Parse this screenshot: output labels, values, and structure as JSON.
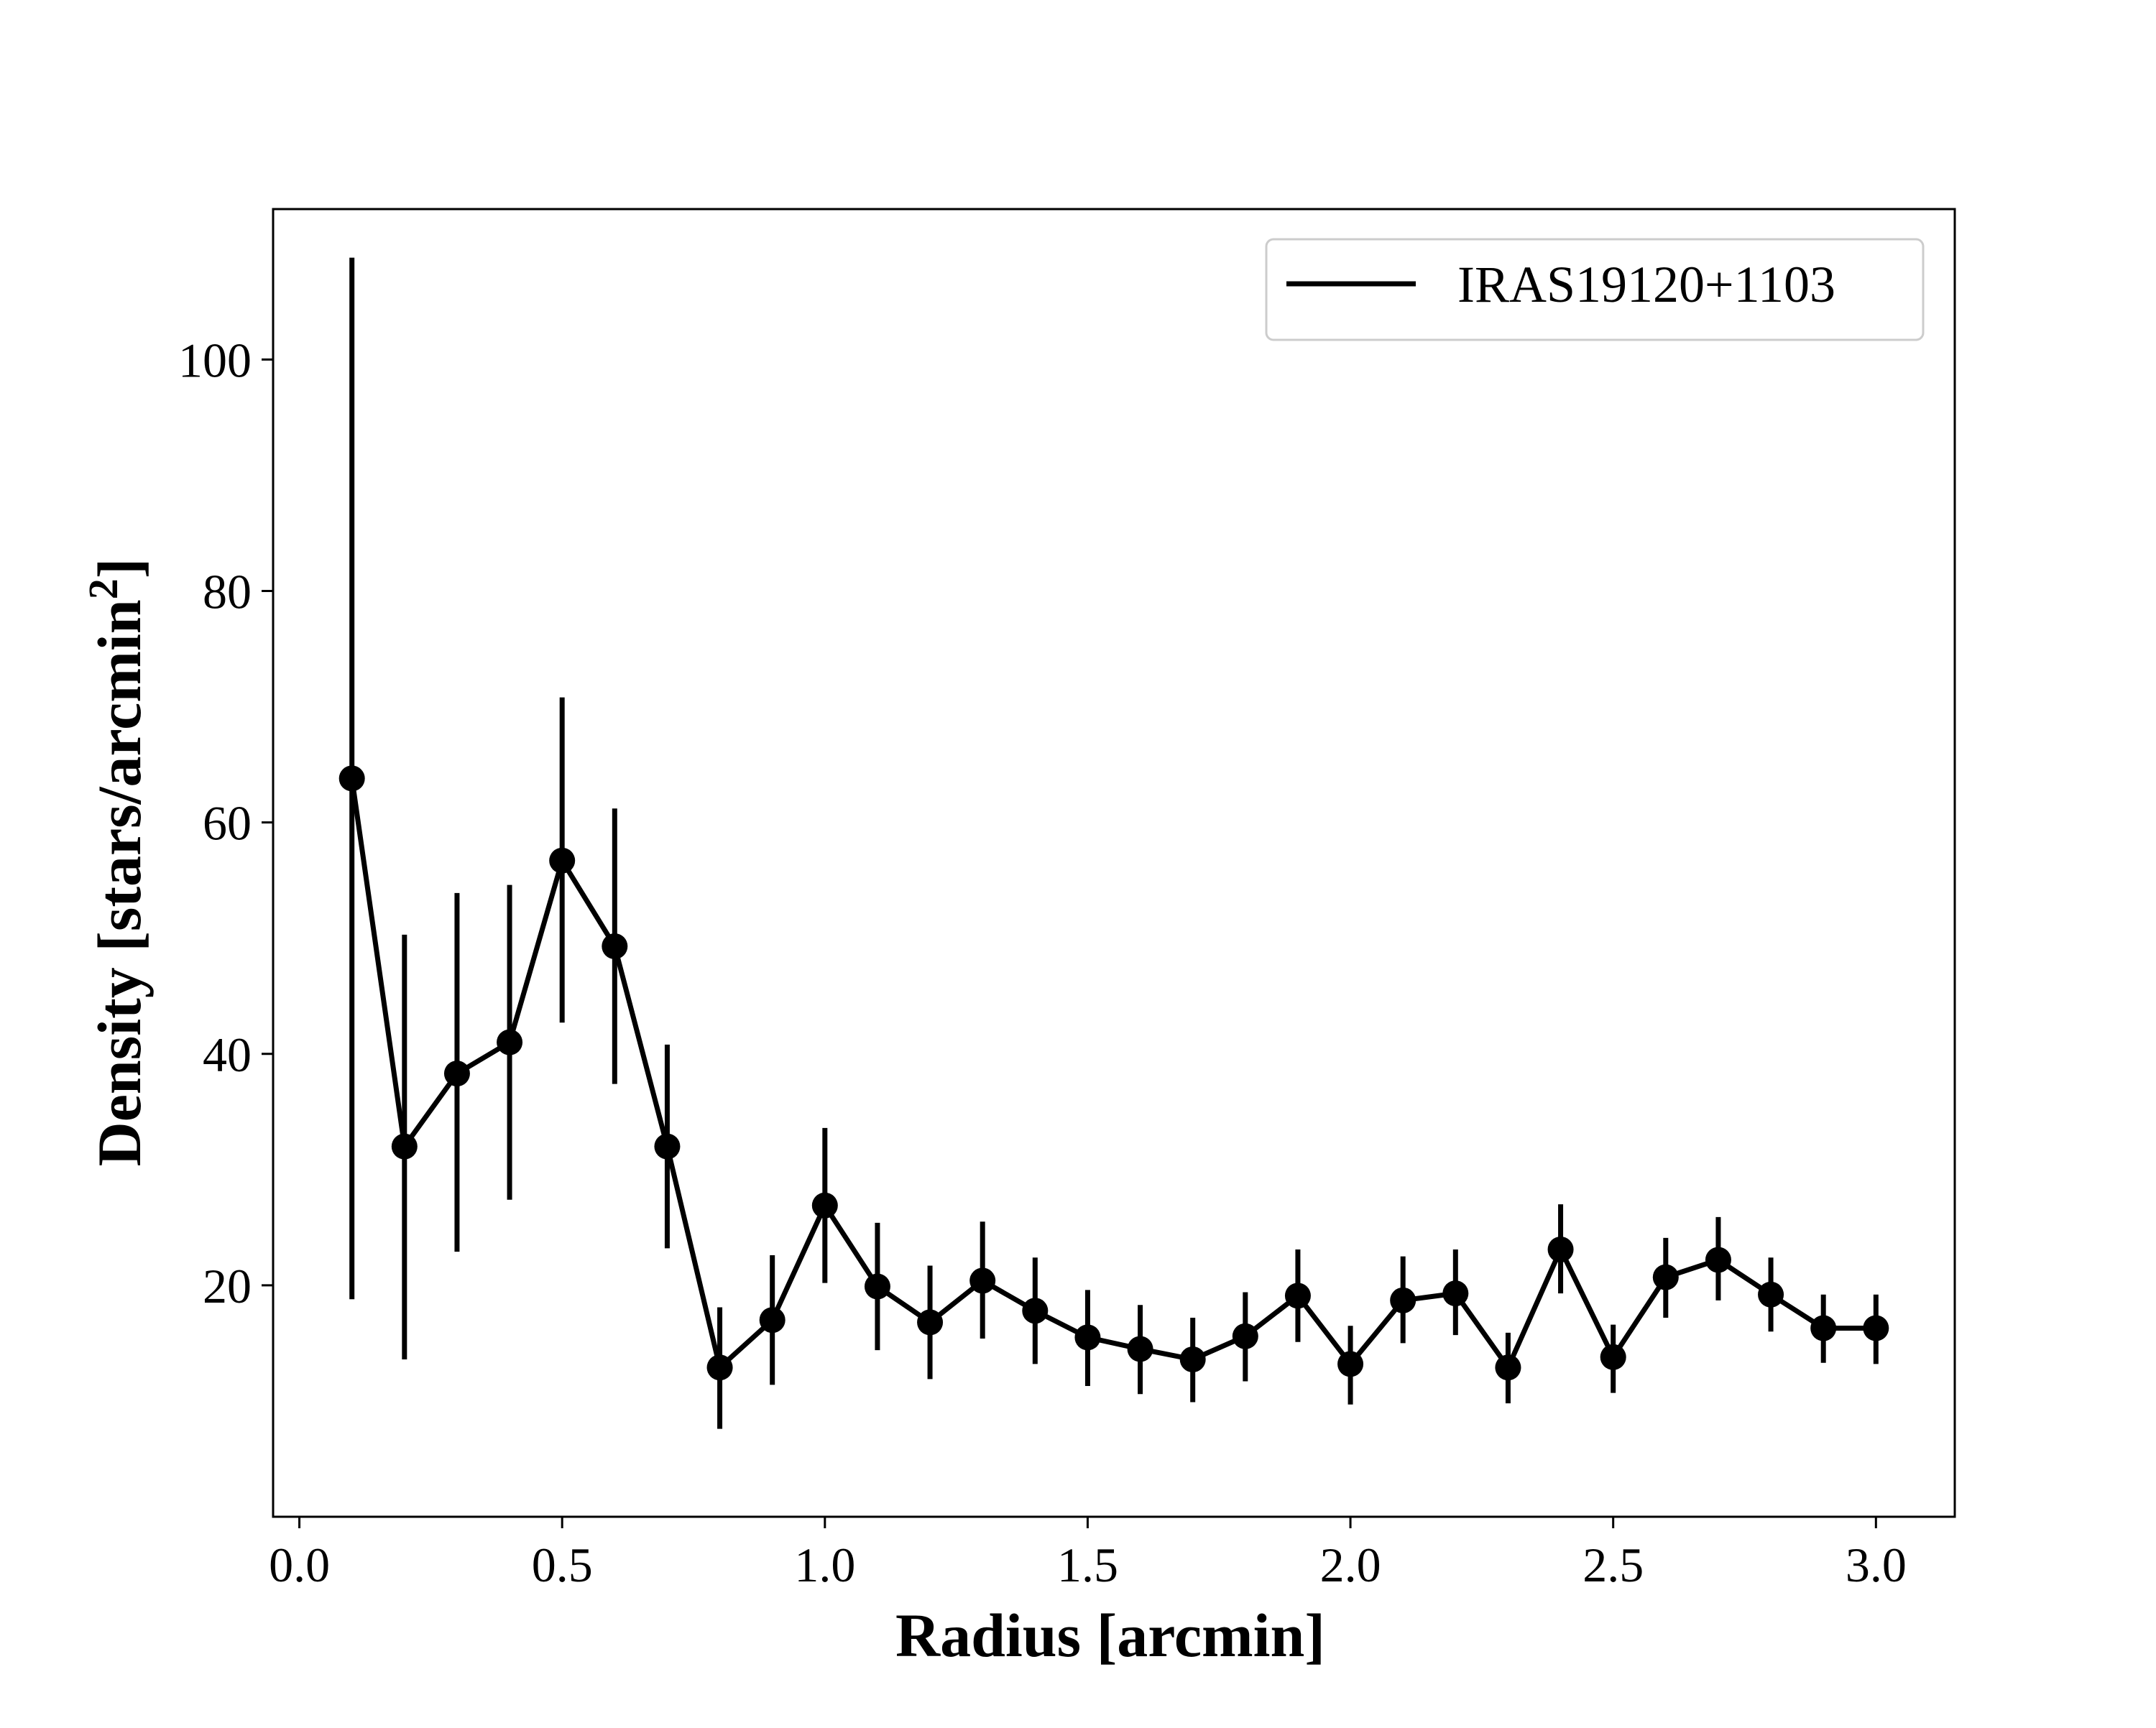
{
  "chart_data": {
    "type": "line",
    "title": "",
    "xlabel": "Radius [arcmin]",
    "ylabel": "Density [stars/arcmin",
    "ylabel_sup": "2",
    "ylabel_end": "]",
    "xlim": [
      -0.05,
      3.15
    ],
    "ylim": [
      0,
      113
    ],
    "xticks": [
      0.0,
      0.5,
      1.0,
      1.5,
      2.0,
      2.5,
      3.0
    ],
    "xtick_labels": [
      "0.0",
      "0.5",
      "1.0",
      "1.5",
      "2.0",
      "2.5",
      "3.0"
    ],
    "yticks": [
      20,
      40,
      60,
      80,
      100
    ],
    "ytick_labels": [
      "20",
      "40",
      "60",
      "80",
      "100"
    ],
    "grid": false,
    "legend_position": "top-right",
    "series": [
      {
        "name": "IRAS19120+1103",
        "color": "#000000",
        "marker": "circle",
        "x": [
          0.1,
          0.2,
          0.3,
          0.4,
          0.5,
          0.6,
          0.7,
          0.8,
          0.9,
          1.0,
          1.1,
          1.2,
          1.3,
          1.4,
          1.5,
          1.6,
          1.7,
          1.8,
          1.9,
          2.0,
          2.1,
          2.2,
          2.3,
          2.4,
          2.5,
          2.6,
          2.7,
          2.8,
          2.9,
          3.0
        ],
        "y": [
          63.8,
          32.0,
          38.3,
          41.0,
          56.7,
          49.3,
          32.0,
          12.9,
          17.0,
          26.9,
          19.9,
          16.8,
          20.4,
          17.8,
          15.5,
          14.5,
          13.6,
          15.6,
          19.1,
          13.2,
          18.7,
          19.3,
          12.9,
          23.1,
          13.8,
          20.7,
          22.2,
          19.2,
          16.3,
          16.3
        ],
        "err_low": [
          18.8,
          13.6,
          22.9,
          27.4,
          42.7,
          37.4,
          23.2,
          7.6,
          11.4,
          20.2,
          14.4,
          11.9,
          15.4,
          13.2,
          11.3,
          10.6,
          9.9,
          11.7,
          15.1,
          9.7,
          15.0,
          15.7,
          9.8,
          19.3,
          10.7,
          17.2,
          18.7,
          16.0,
          13.3,
          13.2
        ],
        "err_high": [
          108.8,
          50.3,
          53.9,
          54.6,
          70.8,
          61.2,
          40.8,
          18.1,
          22.6,
          33.6,
          25.4,
          21.7,
          25.5,
          22.4,
          19.6,
          18.3,
          17.2,
          19.4,
          23.1,
          16.5,
          22.5,
          23.1,
          15.9,
          27.0,
          16.6,
          24.1,
          25.9,
          22.4,
          19.2,
          19.2
        ]
      }
    ]
  }
}
